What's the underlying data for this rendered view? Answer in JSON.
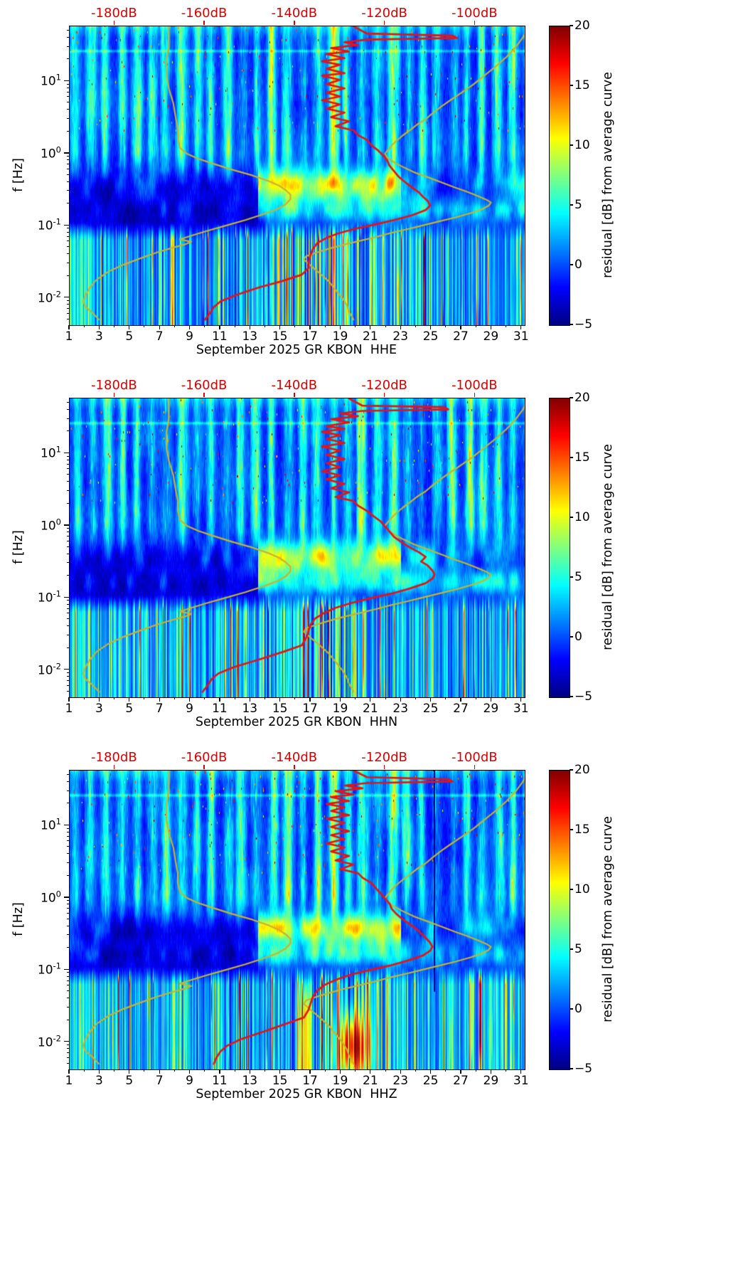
{
  "colors": {
    "background": "#ffffff",
    "top_axis": "#dd0000",
    "average_curve": "#e81212",
    "noise_model_curve": "#c9b22e",
    "spine": "#000000"
  },
  "noise_models": {
    "name": "Peterson noise model curves (yellow overlay)",
    "nlnm_points_f_db": [
      [
        58,
        -168
      ],
      [
        30,
        -168
      ],
      [
        20,
        -168.5
      ],
      [
        12,
        -168.5
      ],
      [
        8,
        -168
      ],
      [
        5,
        -167
      ],
      [
        3.2,
        -166.5
      ],
      [
        2.2,
        -166
      ],
      [
        1.6,
        -166
      ],
      [
        1.2,
        -165.5
      ],
      [
        1.0,
        -164
      ],
      [
        0.85,
        -161.5
      ],
      [
        0.72,
        -158
      ],
      [
        0.6,
        -154
      ],
      [
        0.5,
        -149.5
      ],
      [
        0.42,
        -146
      ],
      [
        0.36,
        -143.5
      ],
      [
        0.31,
        -142
      ],
      [
        0.27,
        -141
      ],
      [
        0.235,
        -141
      ],
      [
        0.2,
        -142
      ],
      [
        0.17,
        -144
      ],
      [
        0.145,
        -147
      ],
      [
        0.12,
        -151
      ],
      [
        0.1,
        -155.5
      ],
      [
        0.085,
        -159.5
      ],
      [
        0.073,
        -163
      ],
      [
        0.065,
        -165.5
      ],
      [
        0.06,
        -163
      ],
      [
        0.055,
        -164.5
      ],
      [
        0.05,
        -167
      ],
      [
        0.043,
        -170.5
      ],
      [
        0.036,
        -174
      ],
      [
        0.029,
        -178
      ],
      [
        0.023,
        -181.5
      ],
      [
        0.018,
        -184
      ],
      [
        0.014,
        -185.5
      ],
      [
        0.011,
        -186.5
      ],
      [
        0.009,
        -187
      ],
      [
        0.0075,
        -186.5
      ],
      [
        0.0063,
        -185
      ],
      [
        0.005,
        -183.5
      ]
    ],
    "nhnm_points_f_db": [
      [
        58,
        -88
      ],
      [
        40,
        -89.5
      ],
      [
        30,
        -91
      ],
      [
        22,
        -93
      ],
      [
        16,
        -95.5
      ],
      [
        12,
        -98
      ],
      [
        9,
        -100.5
      ],
      [
        7,
        -103
      ],
      [
        5.5,
        -105.5
      ],
      [
        4.5,
        -107.5
      ],
      [
        3.6,
        -109.5
      ],
      [
        3,
        -111
      ],
      [
        2.5,
        -113
      ],
      [
        2.1,
        -114.5
      ],
      [
        1.8,
        -116
      ],
      [
        1.5,
        -117.5
      ],
      [
        1.3,
        -118.5
      ],
      [
        1.1,
        -119.5
      ],
      [
        1.0,
        -120
      ],
      [
        0.88,
        -119.5
      ],
      [
        0.76,
        -118
      ],
      [
        0.65,
        -116
      ],
      [
        0.55,
        -113.5
      ],
      [
        0.47,
        -110.5
      ],
      [
        0.4,
        -107.5
      ],
      [
        0.34,
        -104.5
      ],
      [
        0.3,
        -102
      ],
      [
        0.26,
        -99.5
      ],
      [
        0.23,
        -97.5
      ],
      [
        0.21,
        -96.5
      ],
      [
        0.19,
        -97
      ],
      [
        0.17,
        -98.5
      ],
      [
        0.15,
        -101
      ],
      [
        0.13,
        -104.5
      ],
      [
        0.115,
        -108
      ],
      [
        0.1,
        -112
      ],
      [
        0.09,
        -115
      ],
      [
        0.08,
        -118.5
      ],
      [
        0.07,
        -122
      ],
      [
        0.062,
        -125.5
      ],
      [
        0.055,
        -129
      ],
      [
        0.048,
        -132.5
      ],
      [
        0.042,
        -135.5
      ],
      [
        0.038,
        -137.5
      ],
      [
        0.034,
        -138
      ],
      [
        0.028,
        -136.5
      ],
      [
        0.022,
        -134.5
      ],
      [
        0.017,
        -132.5
      ],
      [
        0.013,
        -131
      ],
      [
        0.01,
        -129.5
      ],
      [
        0.008,
        -128.5
      ],
      [
        0.0065,
        -128
      ],
      [
        0.005,
        -127
      ]
    ]
  },
  "chart_data": [
    {
      "type": "heatmap",
      "xlabel": "September 2025 GR KBON  HHE",
      "ylabel": "f [Hz]",
      "x_ticks": [
        1,
        3,
        5,
        7,
        9,
        11,
        13,
        15,
        17,
        19,
        21,
        23,
        25,
        27,
        29,
        31
      ],
      "x_range_days": [
        1,
        31.2
      ],
      "y_scale": "log",
      "y_range_hz": [
        0.0042,
        58
      ],
      "y_tick_exponents": [
        1,
        0,
        -1,
        -2
      ],
      "top_axis": {
        "labels": [
          "-180dB",
          "-160dB",
          "-140dB",
          "-120dB",
          "-100dB"
        ],
        "values_db": [
          -180,
          -160,
          -140,
          -120,
          -100
        ],
        "range_db": [
          -190,
          -89
        ]
      },
      "colorbar": {
        "label": "residual [dB] from average curve",
        "tick_values": [
          20,
          15,
          10,
          5,
          0,
          -5
        ],
        "tick_labels": [
          "20",
          "15",
          "10",
          "5",
          "0",
          "−5"
        ],
        "range": [
          -5,
          20
        ],
        "colormap": "jet"
      },
      "average_curve_points_f_db": [
        [
          58,
          -127
        ],
        [
          46,
          -124
        ],
        [
          43,
          -105
        ],
        [
          40,
          -104
        ],
        [
          38,
          -124
        ],
        [
          35,
          -129
        ],
        [
          32,
          -126
        ],
        [
          29,
          -132
        ],
        [
          26,
          -128
        ],
        [
          24,
          -133
        ],
        [
          21,
          -129
        ],
        [
          19,
          -134
        ],
        [
          17,
          -130
        ],
        [
          15,
          -133
        ],
        [
          13,
          -129
        ],
        [
          12,
          -134
        ],
        [
          10.5,
          -130
        ],
        [
          9.2,
          -133
        ],
        [
          8,
          -129
        ],
        [
          7,
          -133
        ],
        [
          6.2,
          -130
        ],
        [
          5.5,
          -134
        ],
        [
          4.8,
          -130
        ],
        [
          4.2,
          -133
        ],
        [
          3.7,
          -129
        ],
        [
          3.2,
          -132
        ],
        [
          2.8,
          -128
        ],
        [
          2.4,
          -131
        ],
        [
          2.1,
          -127
        ],
        [
          1.8,
          -126
        ],
        [
          1.55,
          -124
        ],
        [
          1.3,
          -123
        ],
        [
          1.1,
          -121.5
        ],
        [
          0.95,
          -120.5
        ],
        [
          0.8,
          -119.5
        ],
        [
          0.68,
          -119
        ],
        [
          0.57,
          -118
        ],
        [
          0.48,
          -117
        ],
        [
          0.4,
          -115.5
        ],
        [
          0.34,
          -114
        ],
        [
          0.29,
          -112.5
        ],
        [
          0.25,
          -111.5
        ],
        [
          0.22,
          -110.5
        ],
        [
          0.19,
          -110
        ],
        [
          0.165,
          -111
        ],
        [
          0.14,
          -114
        ],
        [
          0.12,
          -118
        ],
        [
          0.105,
          -122
        ],
        [
          0.09,
          -127
        ],
        [
          0.078,
          -130.5
        ],
        [
          0.068,
          -133
        ],
        [
          0.058,
          -135
        ],
        [
          0.048,
          -136
        ],
        [
          0.04,
          -136.5
        ],
        [
          0.032,
          -137
        ],
        [
          0.026,
          -137
        ],
        [
          0.021,
          -138.5
        ],
        [
          0.017,
          -143
        ],
        [
          0.014,
          -148
        ],
        [
          0.011,
          -153
        ],
        [
          0.009,
          -156.5
        ],
        [
          0.0075,
          -158
        ],
        [
          0.006,
          -159
        ],
        [
          0.005,
          -160
        ]
      ]
    },
    {
      "type": "heatmap",
      "xlabel": "September 2025 GR KBON  HHN",
      "ylabel": "f [Hz]",
      "x_ticks": [
        1,
        3,
        5,
        7,
        9,
        11,
        13,
        15,
        17,
        19,
        21,
        23,
        25,
        27,
        29,
        31
      ],
      "x_range_days": [
        1,
        31.2
      ],
      "y_scale": "log",
      "y_range_hz": [
        0.0042,
        58
      ],
      "y_tick_exponents": [
        1,
        0,
        -1,
        -2
      ],
      "top_axis": {
        "labels": [
          "-180dB",
          "-160dB",
          "-140dB",
          "-120dB",
          "-100dB"
        ],
        "values_db": [
          -180,
          -160,
          -140,
          -120,
          -100
        ],
        "range_db": [
          -190,
          -89
        ]
      },
      "colorbar": {
        "label": "residual [dB] from average curve",
        "tick_values": [
          20,
          15,
          10,
          5,
          0,
          -5
        ],
        "tick_labels": [
          "20",
          "15",
          "10",
          "5",
          "0",
          "−5"
        ],
        "range": [
          -5,
          20
        ],
        "colormap": "jet"
      },
      "average_curve_points_f_db": [
        [
          58,
          -128
        ],
        [
          46,
          -125
        ],
        [
          44,
          -107
        ],
        [
          41,
          -106
        ],
        [
          39,
          -125
        ],
        [
          36,
          -130
        ],
        [
          33,
          -126
        ],
        [
          30,
          -132
        ],
        [
          27,
          -128
        ],
        [
          24,
          -133
        ],
        [
          22,
          -129
        ],
        [
          20,
          -134
        ],
        [
          18,
          -130
        ],
        [
          16,
          -133
        ],
        [
          14,
          -129
        ],
        [
          12.5,
          -134
        ],
        [
          11,
          -130
        ],
        [
          9.6,
          -133
        ],
        [
          8.4,
          -129
        ],
        [
          7.4,
          -133
        ],
        [
          6.5,
          -130
        ],
        [
          5.7,
          -134
        ],
        [
          5,
          -130
        ],
        [
          4.4,
          -133
        ],
        [
          3.8,
          -129
        ],
        [
          3.3,
          -132
        ],
        [
          2.9,
          -128
        ],
        [
          2.5,
          -131
        ],
        [
          2.2,
          -127
        ],
        [
          1.9,
          -126
        ],
        [
          1.6,
          -124
        ],
        [
          1.35,
          -122.5
        ],
        [
          1.15,
          -121
        ],
        [
          0.98,
          -120
        ],
        [
          0.83,
          -119
        ],
        [
          0.7,
          -118
        ],
        [
          0.6,
          -116.5
        ],
        [
          0.5,
          -114.5
        ],
        [
          0.43,
          -112.5
        ],
        [
          0.37,
          -111
        ],
        [
          0.32,
          -112
        ],
        [
          0.28,
          -110.5
        ],
        [
          0.24,
          -109.5
        ],
        [
          0.21,
          -109
        ],
        [
          0.185,
          -109.5
        ],
        [
          0.16,
          -111
        ],
        [
          0.135,
          -114.5
        ],
        [
          0.115,
          -118.5
        ],
        [
          0.1,
          -123
        ],
        [
          0.085,
          -127.5
        ],
        [
          0.073,
          -131
        ],
        [
          0.062,
          -133.5
        ],
        [
          0.052,
          -135.5
        ],
        [
          0.043,
          -136.5
        ],
        [
          0.035,
          -137
        ],
        [
          0.028,
          -137.5
        ],
        [
          0.022,
          -138.5
        ],
        [
          0.018,
          -142.5
        ],
        [
          0.014,
          -148
        ],
        [
          0.011,
          -153.5
        ],
        [
          0.009,
          -157
        ],
        [
          0.0075,
          -158.5
        ],
        [
          0.006,
          -159.5
        ],
        [
          0.005,
          -160.5
        ]
      ]
    },
    {
      "type": "heatmap",
      "xlabel": "September 2025 GR KBON  HHZ",
      "ylabel": "f [Hz]",
      "x_ticks": [
        1,
        3,
        5,
        7,
        9,
        11,
        13,
        15,
        17,
        19,
        21,
        23,
        25,
        27,
        29,
        31
      ],
      "x_range_days": [
        1,
        31.2
      ],
      "y_scale": "log",
      "y_range_hz": [
        0.0042,
        58
      ],
      "y_tick_exponents": [
        1,
        0,
        -1,
        -2
      ],
      "top_axis": {
        "labels": [
          "-180dB",
          "-160dB",
          "-140dB",
          "-120dB",
          "-100dB"
        ],
        "values_db": [
          -180,
          -160,
          -140,
          -120,
          -100
        ],
        "range_db": [
          -190,
          -89
        ]
      },
      "colorbar": {
        "label": "residual [dB] from average curve",
        "tick_values": [
          20,
          15,
          10,
          5,
          0,
          -5
        ],
        "tick_labels": [
          "20",
          "15",
          "10",
          "5",
          "0",
          "−5"
        ],
        "range": [
          -5,
          20
        ],
        "colormap": "jet"
      },
      "average_curve_points_f_db": [
        [
          58,
          -127
        ],
        [
          47,
          -124
        ],
        [
          44,
          -106
        ],
        [
          41,
          -105
        ],
        [
          39,
          -124
        ],
        [
          36,
          -129
        ],
        [
          33,
          -125
        ],
        [
          30,
          -131
        ],
        [
          27,
          -127
        ],
        [
          25,
          -132
        ],
        [
          22,
          -128
        ],
        [
          20,
          -133
        ],
        [
          18,
          -129
        ],
        [
          16,
          -132
        ],
        [
          14,
          -128
        ],
        [
          12.5,
          -133
        ],
        [
          11,
          -129
        ],
        [
          9.6,
          -132
        ],
        [
          8.4,
          -128
        ],
        [
          7.4,
          -132
        ],
        [
          6.5,
          -129
        ],
        [
          5.7,
          -133
        ],
        [
          5,
          -129
        ],
        [
          4.4,
          -132
        ],
        [
          3.8,
          -128
        ],
        [
          3.3,
          -131
        ],
        [
          2.9,
          -127
        ],
        [
          2.5,
          -130
        ],
        [
          2.2,
          -126
        ],
        [
          1.9,
          -125
        ],
        [
          1.6,
          -123
        ],
        [
          1.35,
          -122
        ],
        [
          1.15,
          -121
        ],
        [
          0.98,
          -120
        ],
        [
          0.83,
          -119
        ],
        [
          0.7,
          -118.5
        ],
        [
          0.6,
          -117.5
        ],
        [
          0.5,
          -116
        ],
        [
          0.43,
          -114.5
        ],
        [
          0.37,
          -113
        ],
        [
          0.32,
          -112
        ],
        [
          0.28,
          -111
        ],
        [
          0.24,
          -110
        ],
        [
          0.21,
          -109.5
        ],
        [
          0.185,
          -110
        ],
        [
          0.16,
          -111.5
        ],
        [
          0.135,
          -115
        ],
        [
          0.115,
          -119
        ],
        [
          0.1,
          -123.5
        ],
        [
          0.085,
          -128
        ],
        [
          0.073,
          -131
        ],
        [
          0.062,
          -133.5
        ],
        [
          0.052,
          -135
        ],
        [
          0.043,
          -136
        ],
        [
          0.035,
          -136.5
        ],
        [
          0.028,
          -137
        ],
        [
          0.022,
          -138
        ],
        [
          0.018,
          -142
        ],
        [
          0.014,
          -147
        ],
        [
          0.011,
          -152
        ],
        [
          0.009,
          -155
        ],
        [
          0.0075,
          -156.5
        ],
        [
          0.006,
          -157.5
        ],
        [
          0.005,
          -158
        ]
      ]
    }
  ]
}
